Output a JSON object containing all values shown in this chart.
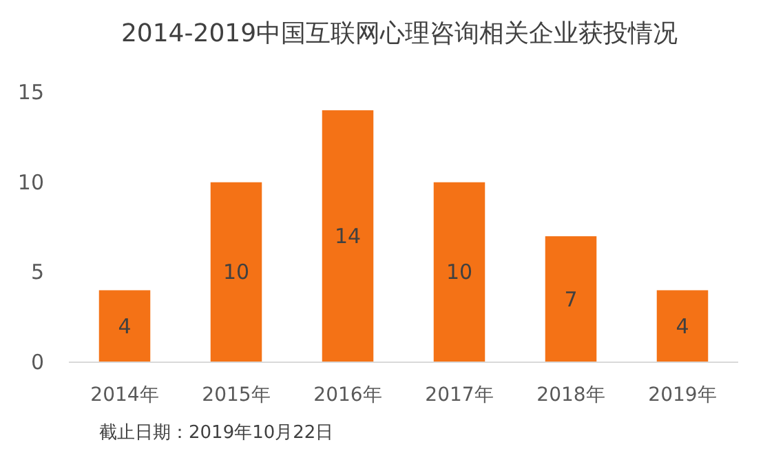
{
  "chart_data": {
    "type": "bar",
    "title": "2014-2019中国互联网心理咨询相关企业获投情况",
    "categories": [
      "2014年",
      "2015年",
      "2016年",
      "2017年",
      "2018年",
      "2019年"
    ],
    "values": [
      4,
      10,
      14,
      10,
      7,
      4
    ],
    "color": "#f47216",
    "ylim": [
      0,
      15
    ],
    "yticks": [
      0,
      5,
      10,
      15
    ],
    "data_labels": true,
    "annotations": [
      "截止日期：2019年10月22日"
    ]
  }
}
